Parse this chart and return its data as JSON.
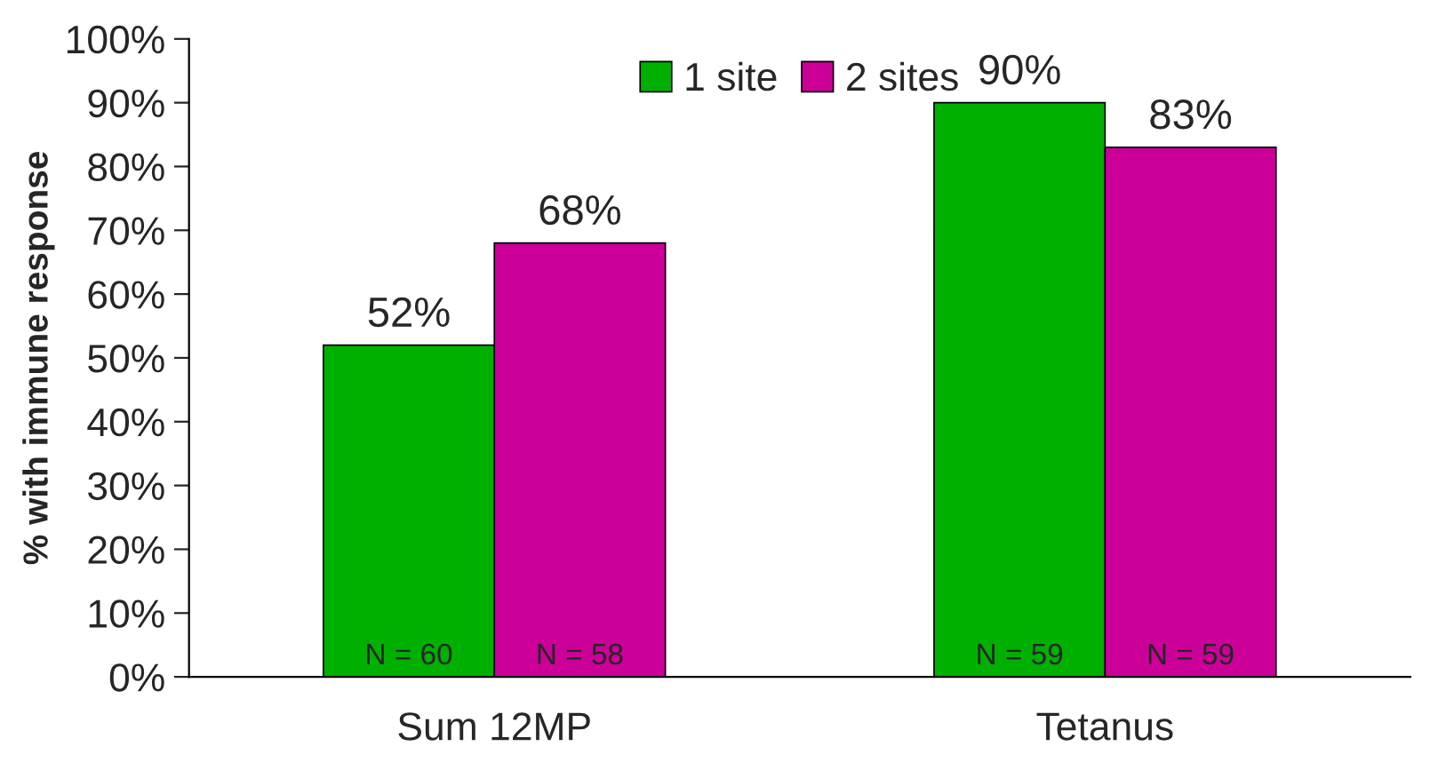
{
  "chart_data": {
    "type": "bar",
    "ylabel": "% with immune response",
    "categories": [
      "Sum 12MP",
      "Tetanus"
    ],
    "series": [
      {
        "name": "1 site",
        "color": "#00b000",
        "values": [
          52,
          90
        ],
        "value_labels": [
          "52%",
          "90%"
        ]
      },
      {
        "name": "2 sites",
        "color": "#cc0099",
        "values": [
          68,
          83
        ],
        "value_labels": [
          "68%",
          "83%"
        ]
      }
    ],
    "ylim": [
      0,
      100
    ],
    "yticks": [
      {
        "value": 0,
        "label": "0%"
      },
      {
        "value": 10,
        "label": "10%"
      },
      {
        "value": 20,
        "label": "20%"
      },
      {
        "value": 30,
        "label": "30%"
      },
      {
        "value": 40,
        "label": "40%"
      },
      {
        "value": 50,
        "label": "50%"
      },
      {
        "value": 60,
        "label": "60%"
      },
      {
        "value": 70,
        "label": "70%"
      },
      {
        "value": 80,
        "label": "80%"
      },
      {
        "value": 90,
        "label": "90%"
      },
      {
        "value": 100,
        "label": "100%"
      }
    ],
    "annotations": [
      {
        "text": "N = 60",
        "x": "Sum 12MP",
        "y": 0
      },
      {
        "text": "N = 58",
        "x": "Sum 12MP",
        "y": 0
      },
      {
        "text": "N = 59",
        "x": "Tetanus",
        "y": 0
      },
      {
        "text": "N = 59",
        "x": "Tetanus",
        "y": 0
      }
    ],
    "grid": false,
    "legend": "top"
  }
}
